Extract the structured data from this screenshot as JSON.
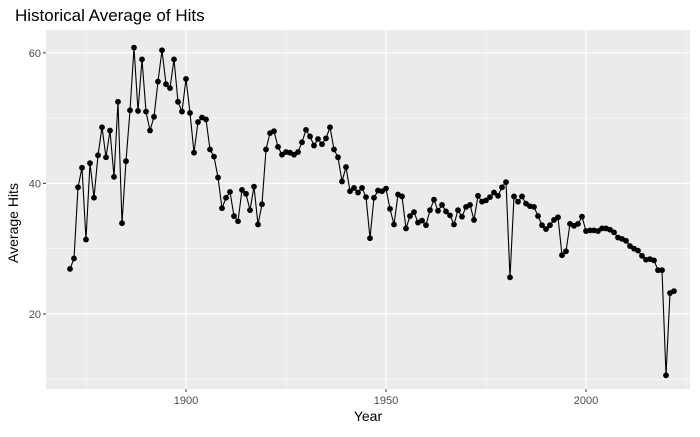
{
  "chart_data": {
    "type": "line",
    "title": "Historical Average of Hits",
    "xlabel": "Year",
    "ylabel": "Average Hits",
    "xlim": [
      1865,
      2026
    ],
    "ylim": [
      8.5,
      63.5
    ],
    "x_ticks": [
      1900,
      1950,
      2000
    ],
    "x_tick_labels": [
      "1900",
      "1950",
      "2000"
    ],
    "y_ticks": [
      20,
      40,
      60
    ],
    "y_tick_labels": [
      "20",
      "40",
      "60"
    ],
    "grid": true,
    "legend": "none",
    "colors": {
      "panel_background": "#ebebeb",
      "grid_major": "#ffffff",
      "line": "#000000",
      "point": "#000000"
    },
    "series": [
      {
        "x": [
          1871,
          1872,
          1873,
          1874,
          1875,
          1876,
          1877,
          1878,
          1879,
          1880,
          1881,
          1882,
          1883,
          1884,
          1885,
          1886,
          1887,
          1888,
          1889,
          1890,
          1891,
          1892,
          1893,
          1894,
          1895,
          1896,
          1897,
          1898,
          1899,
          1900,
          1901,
          1902,
          1903,
          1904,
          1905,
          1906,
          1907,
          1908,
          1909,
          1910,
          1911,
          1912,
          1913,
          1914,
          1915,
          1916,
          1917,
          1918,
          1919,
          1920,
          1921,
          1922,
          1923,
          1924,
          1925,
          1926,
          1927,
          1928,
          1929,
          1930,
          1931,
          1932,
          1933,
          1934,
          1935,
          1936,
          1937,
          1938,
          1939,
          1940,
          1941,
          1942,
          1943,
          1944,
          1945,
          1946,
          1947,
          1948,
          1949,
          1950,
          1951,
          1952,
          1953,
          1954,
          1955,
          1956,
          1957,
          1958,
          1959,
          1960,
          1961,
          1962,
          1963,
          1964,
          1965,
          1966,
          1967,
          1968,
          1969,
          1970,
          1971,
          1972,
          1973,
          1974,
          1975,
          1976,
          1977,
          1978,
          1979,
          1980,
          1981,
          1982,
          1983,
          1984,
          1985,
          1986,
          1987,
          1988,
          1989,
          1990,
          1991,
          1992,
          1993,
          1994,
          1995,
          1996,
          1997,
          1998,
          1999,
          2000,
          2001,
          2002,
          2003,
          2004,
          2005,
          2006,
          2007,
          2008,
          2009,
          2010,
          2011,
          2012,
          2013,
          2014,
          2015,
          2016,
          2017,
          2018,
          2019,
          2020,
          2021,
          2022
        ],
        "y": [
          26.9,
          28.5,
          39.4,
          42.4,
          31.4,
          43.1,
          37.8,
          44.3,
          48.6,
          44.0,
          48.1,
          41.0,
          52.5,
          33.9,
          43.4,
          51.2,
          60.8,
          51.1,
          59.0,
          51.0,
          48.1,
          50.2,
          55.6,
          60.4,
          55.2,
          54.6,
          59.0,
          52.5,
          51.0,
          56.0,
          50.8,
          44.7,
          49.4,
          50.1,
          49.8,
          45.2,
          44.1,
          40.9,
          36.2,
          37.8,
          38.7,
          35.0,
          34.2,
          39.0,
          38.4,
          35.9,
          39.5,
          33.7,
          36.8,
          45.2,
          47.7,
          48.0,
          45.6,
          44.4,
          44.8,
          44.7,
          44.4,
          44.8,
          46.3,
          48.2,
          47.2,
          45.8,
          46.8,
          46.0,
          46.9,
          48.6,
          45.2,
          44.0,
          40.3,
          42.5,
          38.8,
          39.3,
          38.6,
          39.3,
          37.9,
          31.6,
          37.8,
          38.9,
          38.8,
          39.2,
          36.1,
          33.7,
          38.3,
          38.0,
          33.1,
          35.0,
          35.6,
          34.0,
          34.3,
          33.6,
          35.9,
          37.5,
          35.8,
          36.7,
          35.7,
          35.1,
          33.7,
          35.9,
          34.9,
          36.4,
          36.7,
          34.4,
          38.1,
          37.2,
          37.4,
          37.9,
          38.6,
          38.1,
          39.4,
          40.2,
          25.6,
          38.0,
          37.2,
          38.0,
          36.9,
          36.5,
          36.4,
          35.0,
          33.6,
          33.0,
          33.6,
          34.4,
          34.8,
          29.0,
          29.6,
          33.8,
          33.5,
          33.8,
          34.9,
          32.7,
          32.8,
          32.8,
          32.7,
          33.1,
          33.1,
          32.9,
          32.5,
          31.7,
          31.5,
          31.2,
          30.4,
          30.0,
          29.7,
          28.9,
          28.3,
          28.4,
          28.2,
          26.7,
          26.7,
          10.6,
          23.2,
          23.5
        ]
      }
    ]
  }
}
